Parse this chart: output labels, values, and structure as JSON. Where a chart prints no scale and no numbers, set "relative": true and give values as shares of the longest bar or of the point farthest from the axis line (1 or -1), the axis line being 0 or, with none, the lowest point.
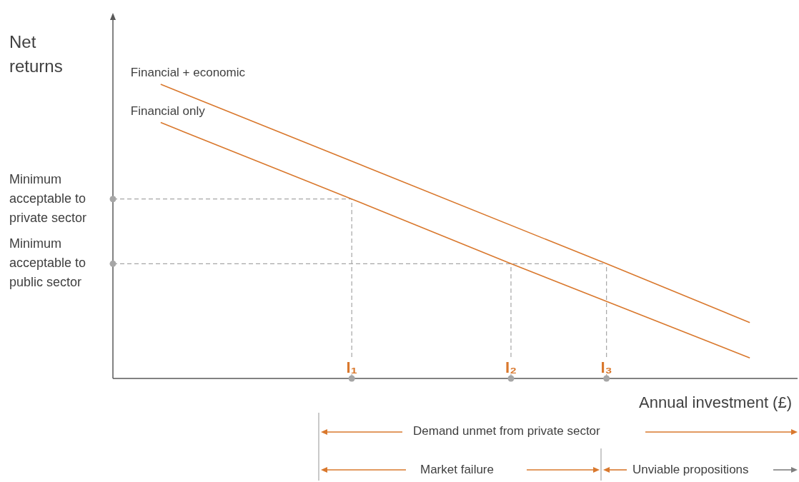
{
  "chart_data": {
    "type": "line",
    "relative": true,
    "ylabel": "Net returns",
    "xlabel": "Annual investment (£)",
    "categories": [
      null,
      null,
      null,
      null,
      null,
      null,
      null,
      null,
      null,
      null,
      null,
      null,
      null,
      null,
      null,
      "I₁",
      null,
      null,
      null,
      null,
      null,
      null,
      null,
      null,
      null,
      "I₂",
      null,
      null,
      null,
      null,
      null,
      "I₃",
      null,
      null,
      null,
      null,
      null,
      null,
      null,
      null,
      null,
      null,
      null,
      null
    ],
    "series": [
      {
        "name": "Financial + economic",
        "color": "#d9782d",
        "values": [
          null,
          null,
          null,
          1,
          null,
          null,
          null,
          null,
          null,
          null,
          null,
          null,
          null,
          null,
          null,
          null,
          null,
          null,
          null,
          null,
          null,
          null,
          null,
          null,
          null,
          null,
          null,
          null,
          null,
          null,
          null,
          0.39,
          null,
          null,
          null,
          null,
          null,
          null,
          null,
          null,
          0.19,
          null,
          null,
          null
        ]
      },
      {
        "name": "Financial only",
        "color": "#d9782d",
        "values": [
          null,
          null,
          null,
          0.87,
          null,
          null,
          null,
          null,
          null,
          null,
          null,
          null,
          null,
          null,
          null,
          0.61,
          null,
          null,
          null,
          null,
          null,
          null,
          null,
          null,
          null,
          0.39,
          null,
          null,
          null,
          null,
          null,
          null,
          null,
          null,
          null,
          null,
          null,
          null,
          null,
          null,
          0.07,
          null,
          null,
          null
        ]
      }
    ],
    "ref_lines": [
      {
        "axis": "y",
        "value": 0.61,
        "label": "Minimum acceptable to private sector",
        "color": "#a6a6a6",
        "line_style": "dashed"
      },
      {
        "axis": "y",
        "value": 0.39,
        "label": "Minimum acceptable to public sector",
        "color": "#a6a6a6",
        "line_style": "dashed"
      },
      {
        "axis": "x",
        "value": "I₁",
        "color": "#a6a6a6",
        "line_style": "dashed"
      },
      {
        "axis": "x",
        "value": "I₂",
        "color": "#a6a6a6",
        "line_style": "dashed"
      },
      {
        "axis": "x",
        "value": "I₃",
        "color": "#a6a6a6",
        "line_style": "dashed"
      }
    ],
    "annotations": [
      "Demand unmet from private sector",
      "Market failure",
      "Unviable propositions"
    ],
    "marker": "none",
    "line_style": "solid",
    "legend": false
  }
}
